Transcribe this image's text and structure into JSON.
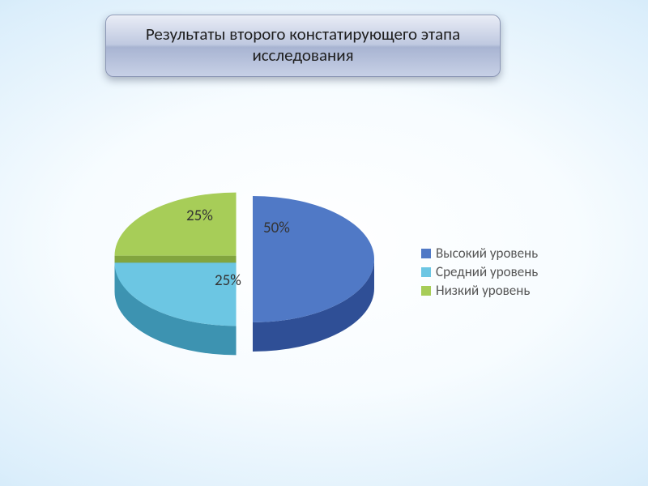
{
  "title": "Результаты второго констатирующего этапа исследования",
  "chart": {
    "type": "pie-3d-exploded",
    "background_color": "transparent",
    "label_fontsize": 19,
    "label_color": "#343434",
    "legend_fontsize": 17,
    "legend_color": "#555555",
    "explode_gap": 12,
    "depth": 36,
    "tilt_ratio": 0.52,
    "slices": [
      {
        "key": "high",
        "label": "Высокий уровень",
        "value": 50,
        "percent_text": "50%",
        "top_color": "#5079c6",
        "side_color": "#2f4f96"
      },
      {
        "key": "medium",
        "label": "Средний уровень",
        "value": 25,
        "percent_text": "25%",
        "top_color": "#6cc6e3",
        "side_color": "#3d93b1"
      },
      {
        "key": "low",
        "label": "Низкий уровень",
        "value": 25,
        "percent_text": "25%",
        "top_color": "#a7cd58",
        "side_color": "#7ba034"
      }
    ]
  },
  "title_box": {
    "border_radius": 10,
    "border_color": "#8b96b4",
    "gradient_top": "#e9edf6",
    "gradient_bottom": "#c7d0e6",
    "text_color": "#1f1f1f",
    "fontsize": 21
  }
}
